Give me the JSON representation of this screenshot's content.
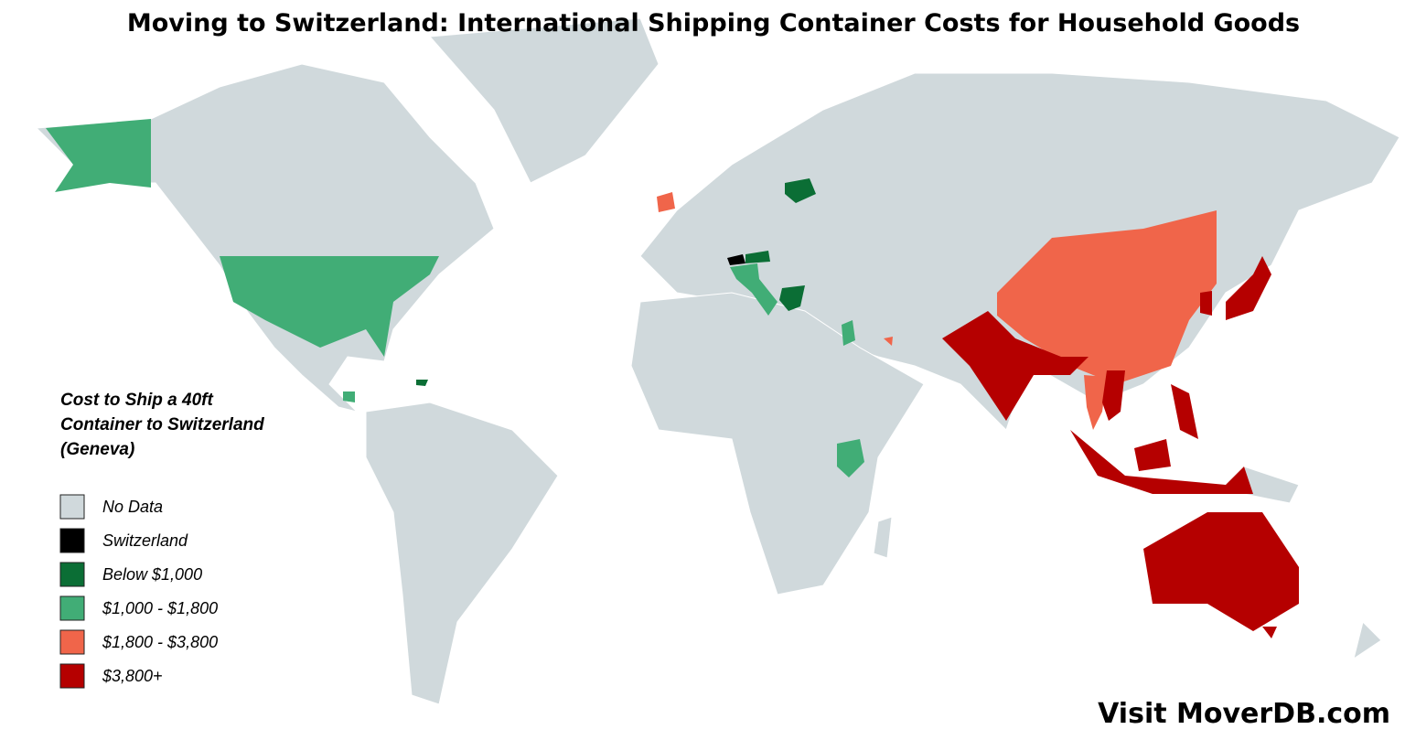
{
  "title": "Moving to Switzerland: International Shipping Container Costs for Household Goods",
  "legend": {
    "title_lines": [
      "Cost to Ship a 40ft",
      "Container to Switzerland",
      "(Geneva)"
    ],
    "items": [
      {
        "label": "No Data",
        "color": "#d0d9dc"
      },
      {
        "label": "Switzerland",
        "color": "#000000"
      },
      {
        "label": "Below $1,000",
        "color": "#0b6e35"
      },
      {
        "label": "$1,000 - $1,800",
        "color": "#41ad76"
      },
      {
        "label": "$1,800 - $3,800",
        "color": "#f0654a"
      },
      {
        "label": "$3,800+",
        "color": "#b50000"
      }
    ]
  },
  "footer": "Visit MoverDB.com"
}
